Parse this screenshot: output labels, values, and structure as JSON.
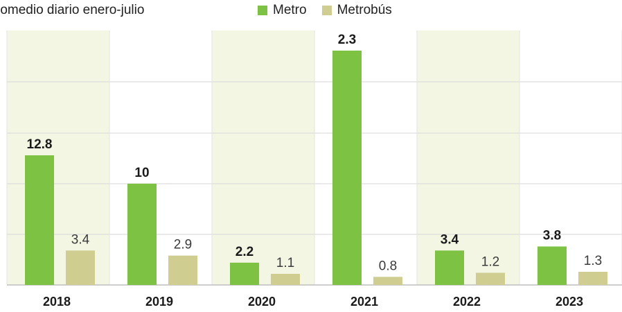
{
  "subtitle": "romedio diario enero-julio",
  "chart_data": {
    "type": "bar",
    "categories": [
      "2018",
      "2019",
      "2020",
      "2021",
      "2022",
      "2023"
    ],
    "series": [
      {
        "name": "Metro",
        "values": [
          12.8,
          10,
          2.2,
          2.3,
          3.4,
          3.8
        ],
        "color": "#7dc242"
      },
      {
        "name": "Metrobús",
        "values": [
          3.4,
          2.9,
          1.1,
          0.8,
          1.2,
          1.3
        ],
        "color": "#cfcd8f"
      }
    ],
    "legend_position": "top",
    "grid": true,
    "colors": {
      "band": "#f4f6e4",
      "grid": "#d6d6d6",
      "axis": "#bdbdbd"
    }
  }
}
